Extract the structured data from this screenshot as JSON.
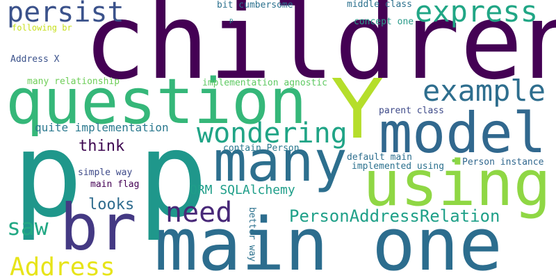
{
  "words": [
    {
      "id": "w-children",
      "text": "children",
      "color": "#440154"
    },
    {
      "id": "w-main-one",
      "text": "main one",
      "color": "#2c6d8e"
    },
    {
      "id": "w-p-big1",
      "text": "p",
      "color": "#1f978b"
    },
    {
      "id": "w-p-big2",
      "text": "p",
      "color": "#1f978b"
    },
    {
      "id": "w-question",
      "text": "question",
      "color": "#35b779"
    },
    {
      "id": "w-using",
      "text": "using",
      "color": "#8fd744"
    },
    {
      "id": "w-Y",
      "text": "Y",
      "color": "#b5de2b"
    },
    {
      "id": "w-model",
      "text": "model",
      "color": "#31688e"
    },
    {
      "id": "w-many",
      "text": "many",
      "color": "#2d6f8e"
    },
    {
      "id": "w-br",
      "text": "br",
      "color": "#443983"
    },
    {
      "id": "w-express",
      "text": "express",
      "color": "#21a685"
    },
    {
      "id": "w-example",
      "text": "example",
      "color": "#2e6e8e"
    },
    {
      "id": "w-persist",
      "text": "persist",
      "color": "#3b528b"
    },
    {
      "id": "w-wondering",
      "text": "wondering",
      "color": "#20a486"
    },
    {
      "id": "w-need",
      "text": "need",
      "color": "#482878"
    },
    {
      "id": "w-address",
      "text": "Address",
      "color": "#e7e419"
    },
    {
      "id": "w-saw",
      "text": "saw",
      "color": "#22a884"
    },
    {
      "id": "w-personaddressrelation",
      "text": "PersonAddressRelation",
      "color": "#1fa088"
    },
    {
      "id": "w-looks",
      "text": "looks",
      "color": "#2f6c8e"
    },
    {
      "id": "w-think",
      "text": "think",
      "color": "#3e0751"
    },
    {
      "id": "w-orm-sqlalchemy",
      "text": "ORM SQLAlchemy",
      "color": "#1f9e89"
    },
    {
      "id": "w-quite-implementation",
      "text": "quite implementation",
      "color": "#2a788e"
    },
    {
      "id": "w-many-relationship",
      "text": "many relationship",
      "color": "#6ece58"
    },
    {
      "id": "w-implementation-agnostic",
      "text": "implementation agnostic",
      "color": "#5ec962"
    },
    {
      "id": "w-bit-cumbersome",
      "text": "bit cumbersome",
      "color": "#2c718e"
    },
    {
      "id": "w-middle-class",
      "text": "middle class",
      "color": "#2c718e"
    },
    {
      "id": "w-concept-one",
      "text": "concept one",
      "color": "#2a9b8a"
    },
    {
      "id": "w-following-br",
      "text": "following br",
      "color": "#c8e020"
    },
    {
      "id": "w-p-small",
      "text": "p",
      "color": "#25848e"
    },
    {
      "id": "w-address-x",
      "text": "Address X",
      "color": "#3b528b"
    },
    {
      "id": "w-parent-class",
      "text": "parent class",
      "color": "#3e4a89"
    },
    {
      "id": "w-contain-person",
      "text": "contain Person",
      "color": "#2a788e"
    },
    {
      "id": "w-default-main",
      "text": "default main",
      "color": "#2e6f8e"
    },
    {
      "id": "w-implemented-using",
      "text": "implemented using",
      "color": "#2c718e"
    },
    {
      "id": "w-person-instance",
      "text": "Person instance",
      "color": "#31688e"
    },
    {
      "id": "w-dot",
      "text": "•",
      "color": "#7ad151"
    },
    {
      "id": "w-simple-way",
      "text": "simple way",
      "color": "#3e4a89"
    },
    {
      "id": "w-main-flag",
      "text": "main flag",
      "color": "#440154"
    },
    {
      "id": "w-better-way",
      "text": "better way",
      "color": "#2c718e"
    }
  ]
}
